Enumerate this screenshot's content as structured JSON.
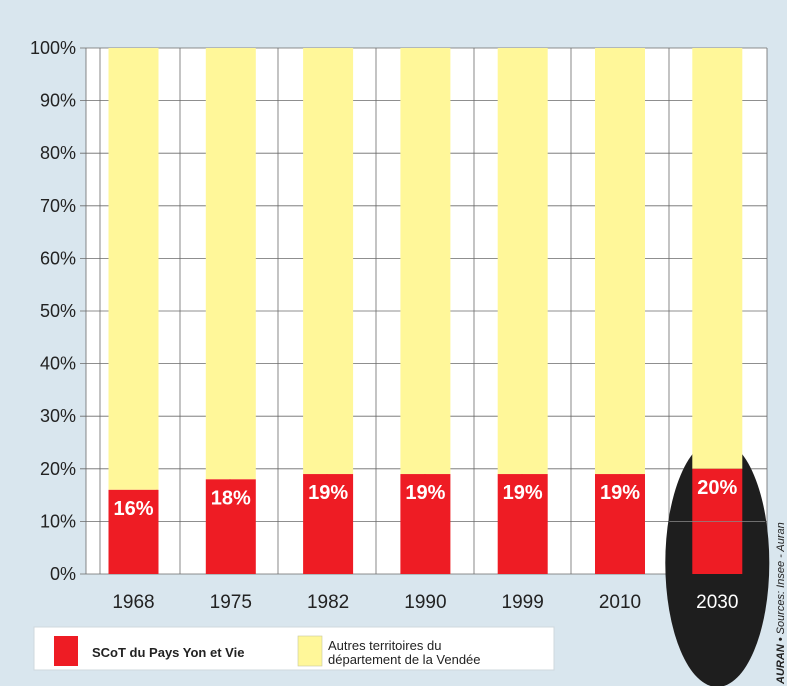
{
  "chart_data": {
    "type": "bar",
    "stacked": true,
    "percent_scale": true,
    "categories": [
      "1968",
      "1975",
      "1982",
      "1990",
      "1999",
      "2010",
      "2030"
    ],
    "series": [
      {
        "name": "SCoT du Pays Yon et Vie",
        "values": [
          16,
          18,
          19,
          19,
          19,
          19,
          20
        ],
        "labels": [
          "16%",
          "18%",
          "19%",
          "19%",
          "19%",
          "19%",
          "20%"
        ],
        "color": "#ee1c24"
      },
      {
        "name": "Autres territoires du département de la Vendée",
        "values": [
          84,
          82,
          81,
          81,
          81,
          81,
          80
        ],
        "color": "#fff799"
      }
    ],
    "ylim": [
      0,
      100
    ],
    "yticks": [
      0,
      10,
      20,
      30,
      40,
      50,
      60,
      70,
      80,
      90,
      100
    ],
    "ytick_labels": [
      "0%",
      "10%",
      "20%",
      "30%",
      "40%",
      "50%",
      "60%",
      "70%",
      "80%",
      "90%",
      "100%"
    ],
    "grid": true,
    "highlighted_category": "2030",
    "highlight_color": "#1e1e1e",
    "legend_position": "bottom",
    "legend": [
      {
        "label": "SCoT du Pays Yon et Vie",
        "color": "#ee1c24"
      },
      {
        "label_lines": [
          "Autres territoires du",
          "département de la Vendée"
        ],
        "color": "#fff799"
      }
    ],
    "source_credit": {
      "brand": "AURAN",
      "bullet": "•",
      "text": "Sources: Insee - Auran"
    }
  },
  "colors": {
    "background": "#d9e6ee",
    "plot_background": "#ffffff",
    "grid": "#555555",
    "red": "#ee1c24",
    "yellow": "#fff799"
  }
}
